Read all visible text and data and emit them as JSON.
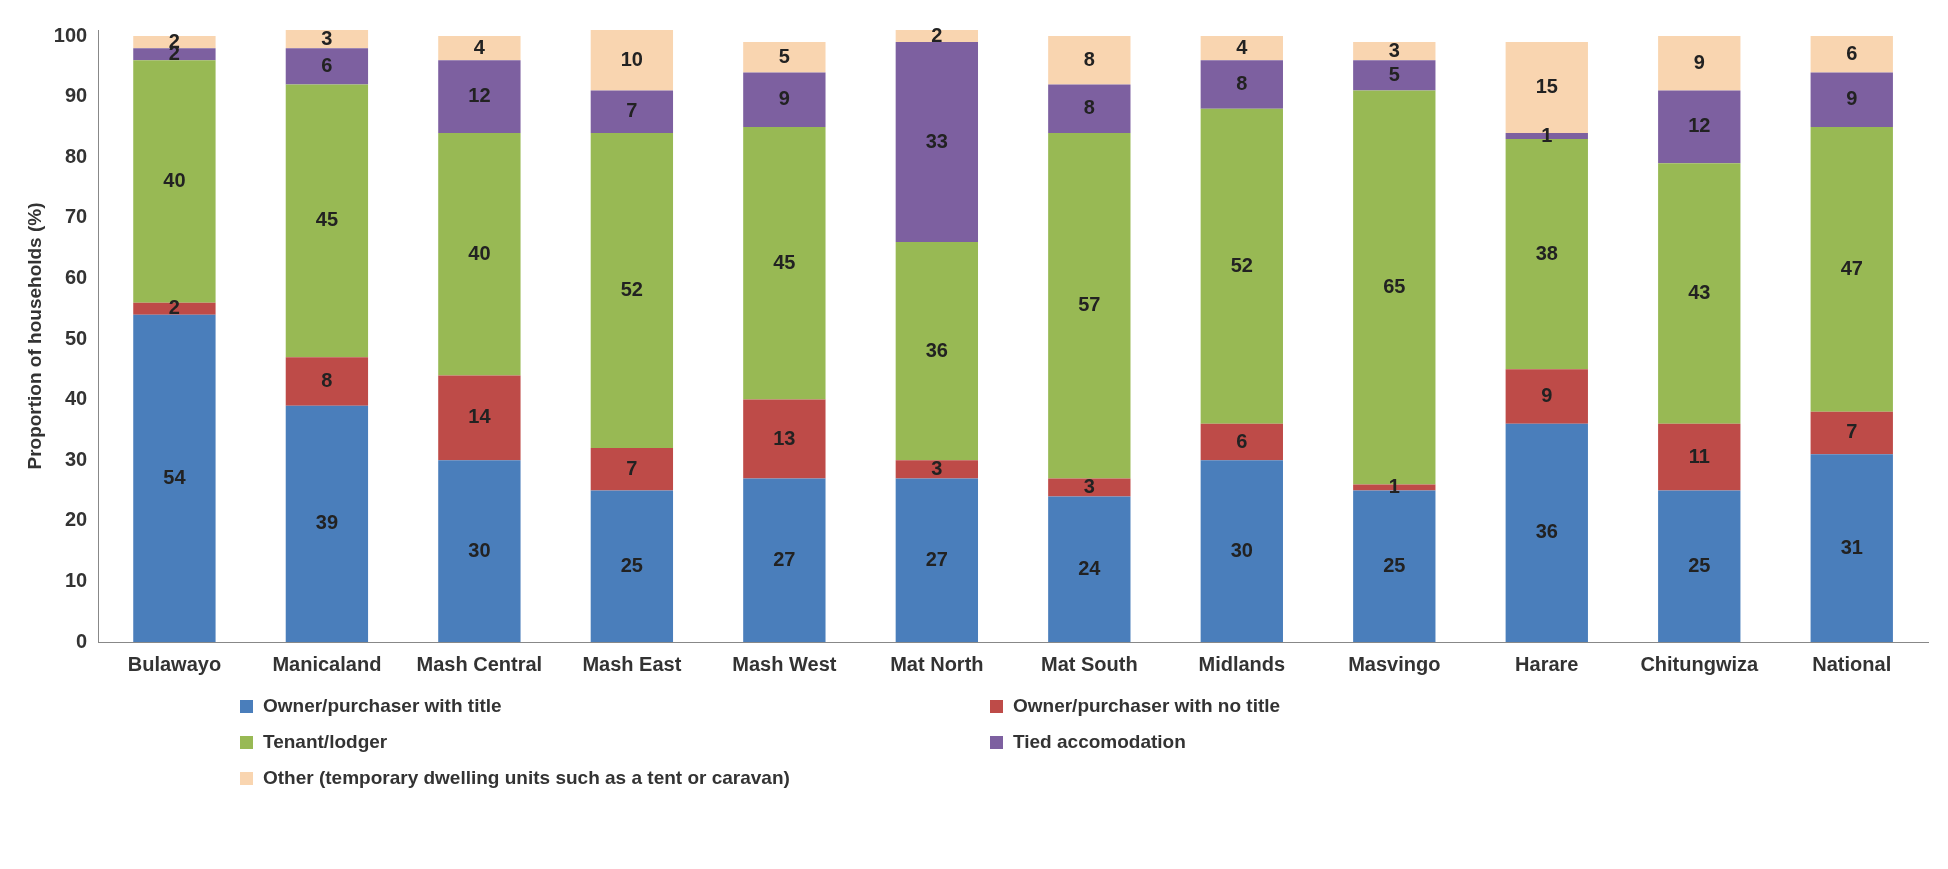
{
  "chart_data": {
    "type": "bar",
    "stacked": true,
    "ylabel": "Proportion of households (%)",
    "categories": [
      "Bulawayo",
      "Manicaland",
      "Mash Central",
      "Mash East",
      "Mash West",
      "Mat North",
      "Mat South",
      "Midlands",
      "Masvingo",
      "Harare",
      "Chitungwiza",
      "National"
    ],
    "series": [
      {
        "name": "Owner/purchaser with title",
        "color": "#4a7ebb",
        "values": [
          54,
          39,
          30,
          25,
          27,
          27,
          24,
          30,
          25,
          36,
          25,
          31
        ]
      },
      {
        "name": "Owner/purchaser with no title",
        "color": "#be4b48",
        "values": [
          2,
          8,
          14,
          7,
          13,
          3,
          3,
          6,
          1,
          9,
          11,
          7
        ]
      },
      {
        "name": "Tenant/lodger",
        "color": "#98b954",
        "values": [
          40,
          45,
          40,
          52,
          45,
          36,
          57,
          52,
          65,
          38,
          43,
          47
        ]
      },
      {
        "name": "Tied accomodation",
        "color": "#7d60a0",
        "values": [
          2,
          6,
          12,
          7,
          9,
          33,
          8,
          8,
          5,
          1,
          12,
          9
        ]
      },
      {
        "name": "Other (temporary dwelling units such as a tent or caravan)",
        "color": "#f9d5b0",
        "values": [
          2,
          3,
          4,
          10,
          5,
          2,
          8,
          4,
          3,
          15,
          9,
          6
        ]
      }
    ],
    "ylim": [
      0,
      101
    ],
    "yticks": [
      0,
      10,
      20,
      30,
      40,
      50,
      60,
      70,
      80,
      90,
      100
    ],
    "grid": false,
    "data_labels": true,
    "legend": "bottom"
  }
}
